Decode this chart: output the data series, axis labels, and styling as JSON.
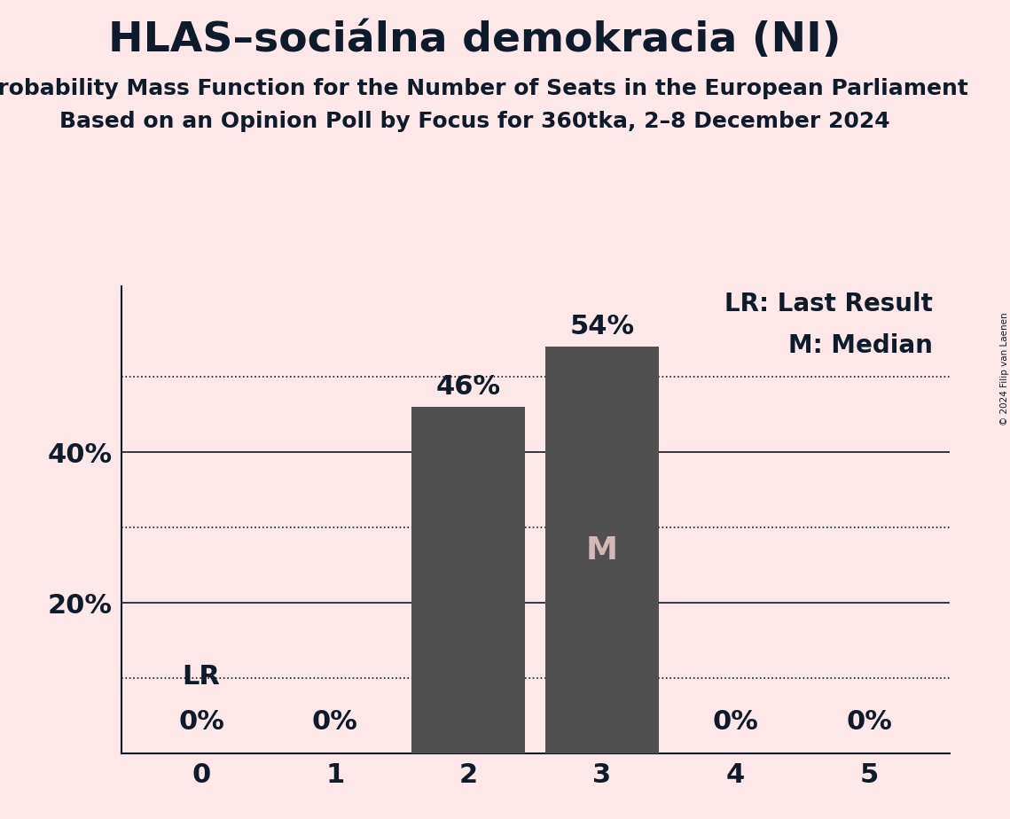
{
  "title": "HLAS–sociálna demokracia (NI)",
  "subtitle": "Probability Mass Function for the Number of Seats in the European Parliament",
  "subsubtitle": "Based on an Opinion Poll by Focus for 360tka, 2–8 December 2024",
  "copyright": "© 2024 Filip van Laenen",
  "categories": [
    0,
    1,
    2,
    3,
    4,
    5
  ],
  "values": [
    0,
    0,
    46,
    54,
    0,
    0
  ],
  "bar_color": "#505050",
  "background_color": "#fce8e8",
  "text_color": "#0d1b2a",
  "median_bar": 3,
  "last_result_bar": 0,
  "legend_lr": "LR: Last Result",
  "legend_m": "M: Median",
  "solid_lines": [
    20,
    40
  ],
  "dotted_lines": [
    10,
    30,
    50
  ],
  "ylim": [
    0,
    62
  ],
  "title_fontsize": 34,
  "subtitle_fontsize": 18,
  "subsubtitle_fontsize": 18,
  "bar_label_fontsize": 22,
  "axis_tick_fontsize": 22,
  "legend_fontsize": 20,
  "median_label_color": "#d4b8b8"
}
